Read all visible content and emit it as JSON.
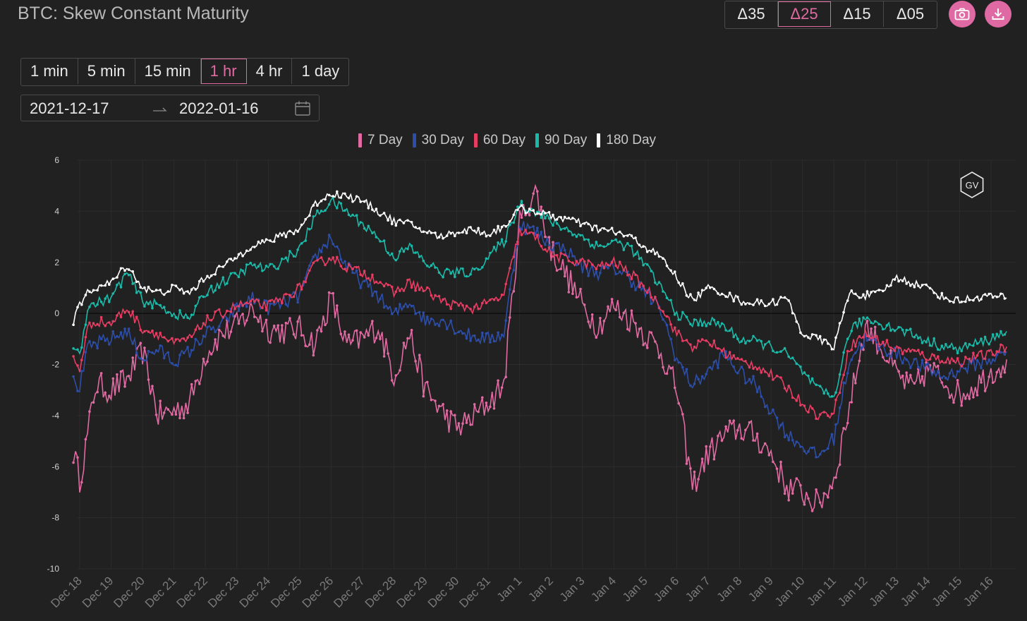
{
  "title": "BTC: Skew Constant Maturity",
  "delta_options": [
    {
      "label": "Δ35",
      "active": false
    },
    {
      "label": "Δ25",
      "active": true
    },
    {
      "label": "Δ15",
      "active": false
    },
    {
      "label": "Δ05",
      "active": false
    }
  ],
  "icons": {
    "snapshot": "camera-icon",
    "download": "download-icon",
    "calendar": "calendar-icon",
    "watermark": "gv-logo"
  },
  "watermark_text": "GV",
  "intervals": [
    {
      "label": "1 min",
      "active": false
    },
    {
      "label": "5 min",
      "active": false
    },
    {
      "label": "15 min",
      "active": false
    },
    {
      "label": "1 hr",
      "active": true
    },
    {
      "label": "4 hr",
      "active": false
    },
    {
      "label": "1 day",
      "active": false
    }
  ],
  "date_range": {
    "start": "2021-12-17",
    "end": "2022-01-16"
  },
  "colors": {
    "accent": "#df6aa3",
    "background": "#212121"
  },
  "chart_data": {
    "type": "line",
    "title": "",
    "xlabel": "",
    "ylabel": "",
    "ylim": [
      -10,
      6
    ],
    "yticks": [
      6,
      4,
      2,
      0,
      -2,
      -4,
      -6,
      -8,
      -10
    ],
    "x_tick_labels": [
      "Dec 18",
      "Dec 19",
      "Dec 20",
      "Dec 21",
      "Dec 22",
      "Dec 23",
      "Dec 24",
      "Dec 25",
      "Dec 26",
      "Dec 27",
      "Dec 28",
      "Dec 29",
      "Dec 30",
      "Dec 31",
      "Jan 1",
      "Jan 2",
      "Jan 3",
      "Jan 4",
      "Jan 5",
      "Jan 6",
      "Jan 7",
      "Jan 8",
      "Jan 9",
      "Jan 10",
      "Jan 11",
      "Jan 12",
      "Jan 13",
      "Jan 14",
      "Jan 15",
      "Jan 16"
    ],
    "x_unit": "days since 2021-12-18",
    "xlim": [
      -0.25,
      29.5
    ],
    "grid": true,
    "legend_position": "top-center",
    "series": [
      {
        "name": "7 Day",
        "color": "#e06aa2",
        "x": [
          -0.2,
          0,
          0.25,
          0.5,
          1,
          1.5,
          2,
          2.5,
          3,
          3.5,
          4,
          4.5,
          5,
          5.5,
          6,
          6.5,
          7,
          7.5,
          8,
          8.5,
          9,
          9.5,
          10,
          10.5,
          11,
          11.5,
          12,
          12.5,
          13,
          13.5,
          14,
          14.5,
          15,
          15.5,
          16,
          16.5,
          17,
          17.5,
          18,
          18.5,
          19,
          19.5,
          20,
          20.5,
          21,
          21.5,
          22,
          22.5,
          23,
          23.5,
          24,
          24.5,
          25,
          25.5,
          26,
          26.5,
          27,
          27.5,
          28,
          28.5,
          29,
          29.5
        ],
        "y": [
          -5.4,
          -6.5,
          -4.8,
          -2.8,
          -3.0,
          -2.6,
          -1.5,
          -4.0,
          -3.8,
          -3.5,
          -1.6,
          -0.8,
          -0.5,
          0.2,
          -0.6,
          -0.7,
          -0.6,
          -1.2,
          0.6,
          -1.3,
          -1.0,
          -0.5,
          -2.4,
          -0.8,
          -3.0,
          -3.8,
          -4.5,
          -4.1,
          -3.5,
          -2.8,
          3.6,
          4.8,
          2.5,
          1.5,
          0.3,
          -0.5,
          0.3,
          -0.2,
          -0.8,
          -1.5,
          -3.0,
          -6.8,
          -5.5,
          -4.8,
          -4.5,
          -4.8,
          -5.5,
          -6.8,
          -7.0,
          -7.5,
          -6.5,
          -3.6,
          -0.5,
          -1.3,
          -2.4,
          -3.0,
          -2.2,
          -2.6,
          -3.2,
          -2.8,
          -2.3,
          -1.8
        ]
      },
      {
        "name": "30 Day",
        "color": "#2d4ea8",
        "x": [
          -0.2,
          0,
          0.25,
          0.5,
          1,
          1.5,
          2,
          2.5,
          3,
          3.5,
          4,
          4.5,
          5,
          5.5,
          6,
          6.5,
          7,
          7.5,
          8,
          8.5,
          9,
          9.5,
          10,
          10.5,
          11,
          11.5,
          12,
          12.5,
          13,
          13.5,
          14,
          14.5,
          15,
          15.5,
          16,
          16.5,
          17,
          17.5,
          18,
          18.5,
          19,
          19.5,
          20,
          20.5,
          21,
          21.5,
          22,
          22.5,
          23,
          23.5,
          24,
          24.5,
          25,
          25.5,
          26,
          26.5,
          27,
          27.5,
          28,
          28.5,
          29,
          29.5
        ],
        "y": [
          -2.7,
          -2.9,
          -1.4,
          -1.2,
          -1.0,
          -0.7,
          -1.8,
          -1.4,
          -1.9,
          -1.5,
          -0.8,
          -0.5,
          0.2,
          0.6,
          0.2,
          0.4,
          0.7,
          2.2,
          3.0,
          1.8,
          1.2,
          0.7,
          -0.1,
          0.5,
          -0.3,
          -0.2,
          -0.6,
          -0.9,
          -1.0,
          -0.8,
          3.5,
          3.2,
          2.7,
          2.5,
          1.8,
          1.6,
          1.8,
          1.4,
          0.8,
          0.1,
          -1.8,
          -2.8,
          -2.3,
          -1.6,
          -2.3,
          -2.8,
          -3.8,
          -4.7,
          -5.2,
          -5.6,
          -4.9,
          -1.8,
          -1.0,
          -1.3,
          -1.6,
          -1.9,
          -2.2,
          -2.5,
          -2.2,
          -2.0,
          -1.8,
          -1.5
        ]
      },
      {
        "name": "60 Day",
        "color": "#e63d63",
        "x": [
          -0.2,
          0,
          0.25,
          0.5,
          1,
          1.5,
          2,
          2.5,
          3,
          3.5,
          4,
          4.5,
          5,
          5.5,
          6,
          6.5,
          7,
          7.5,
          8,
          8.5,
          9,
          9.5,
          10,
          10.5,
          11,
          11.5,
          12,
          12.5,
          13,
          13.5,
          14,
          14.5,
          15,
          15.5,
          16,
          16.5,
          17,
          17.5,
          18,
          18.5,
          19,
          19.5,
          20,
          20.5,
          21,
          21.5,
          22,
          22.5,
          23,
          23.5,
          24,
          24.5,
          25,
          25.5,
          26,
          26.5,
          27,
          27.5,
          28,
          28.5,
          29,
          29.5
        ],
        "y": [
          -1.8,
          -2.2,
          -0.6,
          -0.3,
          -0.4,
          0.2,
          -0.6,
          -0.8,
          -1.2,
          -1.0,
          -0.3,
          0.0,
          0.3,
          0.4,
          0.3,
          0.6,
          1.0,
          1.9,
          2.2,
          1.8,
          1.6,
          1.3,
          0.8,
          1.2,
          0.9,
          0.5,
          0.3,
          0.2,
          0.4,
          0.7,
          3.2,
          3.0,
          2.3,
          2.1,
          2.0,
          1.8,
          2.0,
          1.6,
          1.0,
          0.3,
          -0.8,
          -1.3,
          -1.1,
          -1.5,
          -1.9,
          -2.0,
          -2.4,
          -2.9,
          -3.5,
          -4.0,
          -3.9,
          -1.3,
          -0.8,
          -1.1,
          -1.4,
          -1.5,
          -1.7,
          -1.8,
          -1.9,
          -1.7,
          -1.6,
          -1.3
        ]
      },
      {
        "name": "90 Day",
        "color": "#1bb9a8",
        "x": [
          -0.2,
          0,
          0.25,
          0.5,
          1,
          1.5,
          2,
          2.5,
          3,
          3.5,
          4,
          4.5,
          5,
          5.5,
          6,
          6.5,
          7,
          7.5,
          8,
          8.5,
          9,
          9.5,
          10,
          10.5,
          11,
          11.5,
          12,
          12.5,
          13,
          13.5,
          14,
          14.5,
          15,
          15.5,
          16,
          16.5,
          17,
          17.5,
          18,
          18.5,
          19,
          19.5,
          20,
          20.5,
          21,
          21.5,
          22,
          22.5,
          23,
          23.5,
          24,
          24.5,
          25,
          25.5,
          26,
          26.5,
          27,
          27.5,
          28,
          28.5,
          29,
          29.5
        ],
        "y": [
          -1.3,
          -1.6,
          0.2,
          0.4,
          0.6,
          1.6,
          0.5,
          0.3,
          0.0,
          -0.2,
          0.8,
          1.2,
          1.5,
          1.9,
          1.7,
          2.1,
          2.5,
          3.8,
          4.4,
          4.0,
          3.5,
          3.0,
          2.2,
          2.6,
          2.0,
          1.6,
          1.6,
          1.6,
          2.2,
          2.8,
          4.3,
          4.0,
          3.6,
          3.3,
          3.0,
          2.6,
          2.8,
          2.6,
          1.9,
          1.0,
          0.0,
          -0.4,
          -0.3,
          -0.5,
          -1.0,
          -1.1,
          -1.3,
          -1.6,
          -2.3,
          -3.0,
          -3.3,
          -0.7,
          -0.2,
          -0.4,
          -0.6,
          -0.8,
          -1.1,
          -1.3,
          -1.4,
          -1.2,
          -1.0,
          -0.7
        ]
      },
      {
        "name": "180 Day",
        "color": "#ffffff",
        "x": [
          -0.2,
          0,
          0.25,
          0.5,
          1,
          1.5,
          2,
          2.5,
          3,
          3.5,
          4,
          4.5,
          5,
          5.5,
          6,
          6.5,
          7,
          7.5,
          8,
          8.5,
          9,
          9.5,
          10,
          10.5,
          11,
          11.5,
          12,
          12.5,
          13,
          13.5,
          14,
          14.5,
          15,
          15.5,
          16,
          16.5,
          17,
          17.5,
          18,
          18.5,
          19,
          19.5,
          20,
          20.5,
          21,
          21.5,
          22,
          22.5,
          23,
          23.5,
          24,
          24.5,
          25,
          25.5,
          26,
          26.5,
          27,
          27.5,
          28,
          28.5,
          29,
          29.5
        ],
        "y": [
          -0.3,
          0.3,
          0.8,
          1.0,
          1.2,
          1.9,
          1.0,
          0.8,
          1.0,
          0.8,
          1.4,
          1.8,
          2.2,
          2.7,
          2.8,
          3.1,
          3.3,
          4.3,
          4.7,
          4.6,
          4.4,
          4.0,
          3.6,
          3.5,
          3.2,
          3.0,
          3.2,
          3.3,
          3.1,
          3.4,
          4.1,
          4.0,
          3.8,
          3.7,
          3.5,
          3.3,
          3.2,
          3.0,
          2.6,
          2.2,
          1.4,
          0.5,
          1.0,
          0.8,
          0.5,
          0.4,
          0.4,
          0.6,
          -0.8,
          -1.0,
          -1.3,
          0.8,
          0.7,
          0.8,
          1.4,
          1.2,
          1.0,
          0.6,
          0.5,
          0.6,
          0.7,
          0.6
        ]
      }
    ]
  }
}
